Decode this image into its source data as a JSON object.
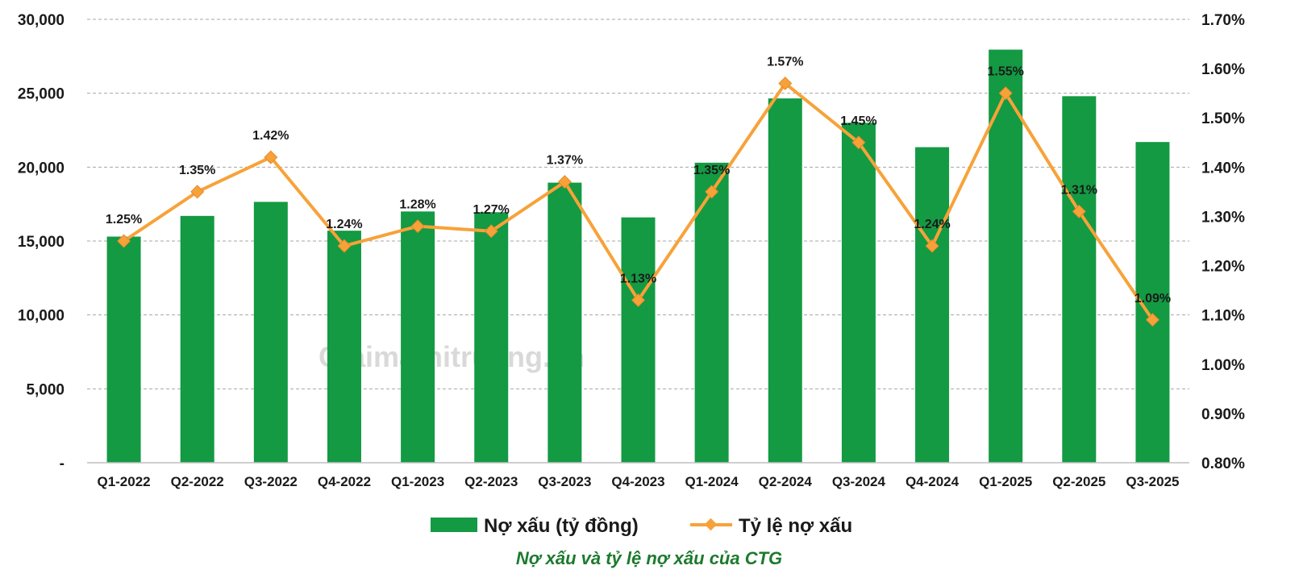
{
  "chart_data": {
    "type": "bar",
    "categories": [
      "Q1-2022",
      "Q2-2022",
      "Q3-2022",
      "Q4-2022",
      "Q1-2023",
      "Q2-2023",
      "Q3-2023",
      "Q4-2023",
      "Q1-2024",
      "Q2-2024",
      "Q3-2024",
      "Q4-2024",
      "Q1-2025",
      "Q2-2025",
      "Q3-2025"
    ],
    "series": [
      {
        "name": "Nợ xấu (tỷ đồng)",
        "type": "bar",
        "axis": "left",
        "color": "#139a43",
        "values": [
          15300,
          16700,
          17650,
          15700,
          17000,
          16950,
          18950,
          16600,
          20300,
          24650,
          23000,
          21350,
          27950,
          24800,
          21700
        ]
      },
      {
        "name": "Tỷ lệ nợ xấu",
        "type": "line",
        "axis": "right",
        "color": "#f7a239",
        "values": [
          1.25,
          1.35,
          1.42,
          1.24,
          1.28,
          1.27,
          1.37,
          1.13,
          1.35,
          1.57,
          1.45,
          1.24,
          1.55,
          1.31,
          1.09
        ],
        "labels": [
          "1.25%",
          "1.35%",
          "1.42%",
          "1.24%",
          "1.28%",
          "1.27%",
          "1.37%",
          "1.13%",
          "1.35%",
          "1.57%",
          "1.45%",
          "1.24%",
          "1.55%",
          "1.31%",
          "1.09%"
        ]
      }
    ],
    "y_left": {
      "ylim": [
        0,
        30000
      ],
      "ticks": [
        0,
        5000,
        10000,
        15000,
        20000,
        25000,
        30000
      ],
      "tick_labels": [
        "-",
        "5,000",
        "10,000",
        "15,000",
        "20,000",
        "25,000",
        "30,000"
      ]
    },
    "y_right": {
      "ylim": [
        0.8,
        1.7
      ],
      "ticks": [
        0.8,
        0.9,
        1.0,
        1.1,
        1.2,
        1.3,
        1.4,
        1.5,
        1.6,
        1.7
      ],
      "tick_labels": [
        "0.80%",
        "0.90%",
        "1.00%",
        "1.10%",
        "1.20%",
        "1.30%",
        "1.40%",
        "1.50%",
        "1.60%",
        "1.70%"
      ]
    },
    "grid": true,
    "legend": "bottom",
    "caption": "Nợ xấu và tỷ lệ nợ xấu của CTG",
    "watermark": "Giaimathitruong.vn"
  }
}
